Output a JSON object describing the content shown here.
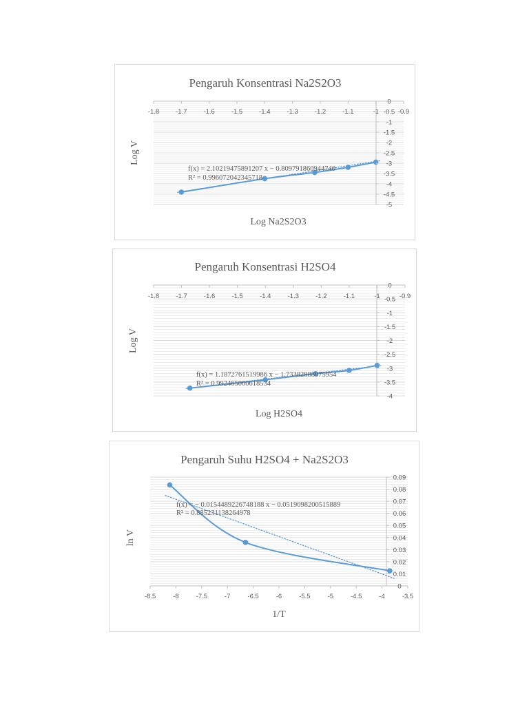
{
  "colors": {
    "series": "#5b9bd5",
    "grid": "#d9d9d9",
    "axis": "#bfbfbf",
    "text": "#595959"
  },
  "chart_data": [
    {
      "type": "scatter",
      "title": "Pengaruh Konsentrasi Na2S2O3",
      "xlabel": "Log Na2S2O3",
      "ylabel": "Log V",
      "xlim": [
        -1.8,
        -0.9
      ],
      "ylim": [
        -5,
        0
      ],
      "x_ticks": [
        "-1.8",
        "-1.7",
        "-1.6",
        "-1.5",
        "-1.4",
        "-1.3",
        "-1.2",
        "-1.1",
        "-1",
        "-0.9"
      ],
      "y_ticks": [
        "0",
        "-0.5",
        "-1",
        "-1.5",
        "-2",
        "-2.5",
        "-3",
        "-3.5",
        "-4",
        "-4.5",
        "-5"
      ],
      "x_axis_position": "top",
      "y_axis_position": "right",
      "grid": true,
      "series": [
        {
          "x": [
            -1.7,
            -1.4,
            -1.22,
            -1.1,
            -1.0
          ],
          "y": [
            -4.4,
            -3.75,
            -3.45,
            -3.2,
            -2.95
          ]
        }
      ],
      "connector": "smooth",
      "trendline": {
        "type": "linear",
        "slope": 2.10219475891207,
        "intercept": -0.80979186094474
      },
      "equation": "f(x) = 2.10219475891207 x − 0.809791860944740",
      "r_squared": "R² = 0.996072042345718"
    },
    {
      "type": "scatter",
      "title": "Pengaruh Konsentrasi H2SO4",
      "xlabel": "Log H2SO4",
      "ylabel": "Log V",
      "xlim": [
        -1.8,
        -0.9
      ],
      "ylim": [
        -4,
        0
      ],
      "x_ticks": [
        "-1.8",
        "-1.7",
        "-1.6",
        "-1.5",
        "-1.4",
        "-1.3",
        "-1.2",
        "-1.1",
        "-1",
        "-0.9"
      ],
      "y_ticks": [
        "0",
        "-0.5",
        "-1",
        "-1.5",
        "-2",
        "-2.5",
        "-3",
        "-3.5",
        "-4"
      ],
      "x_axis_position": "top",
      "y_axis_position": "right",
      "grid": true,
      "series": [
        {
          "x": [
            -1.67,
            -1.4,
            -1.22,
            -1.1,
            -1.0
          ],
          "y": [
            -3.72,
            -3.42,
            -3.2,
            -3.08,
            -2.9
          ]
        }
      ],
      "connector": "smooth",
      "trendline": {
        "type": "linear",
        "slope": 1.1872761519986,
        "intercept": -1.73382888075954
      },
      "equation": "f(x) = 1.1872761519986 x − 1.73382888075954",
      "r_squared": "R² = 0.992465000618534"
    },
    {
      "type": "scatter",
      "title": "Pengaruh Suhu H2SO4 + Na2S2O3",
      "xlabel": "1/T",
      "ylabel": "ln V",
      "xlim": [
        -8.5,
        -3.5
      ],
      "ylim": [
        0,
        0.09
      ],
      "x_ticks": [
        "-8.5",
        "-8",
        "-7.5",
        "-7",
        "-6.5",
        "-6",
        "-5.5",
        "-5",
        "-4.5",
        "-4",
        "-3.5"
      ],
      "y_ticks": [
        "0.09",
        "0.08",
        "0.07",
        "0.06",
        "0.05",
        "0.04",
        "0.03",
        "0.02",
        "0.01",
        "0"
      ],
      "x_axis_position": "bottom",
      "y_axis_position": "right",
      "grid": true,
      "series": [
        {
          "x": [
            -8.12,
            -6.65,
            -3.85
          ],
          "y": [
            0.0835,
            0.036,
            0.0125
          ]
        }
      ],
      "connector": "smooth",
      "trendline": {
        "type": "linear",
        "slope": -0.0154489226748188,
        "intercept": -0.0519098200515889
      },
      "equation": "f(x) = − 0.0154489226748188 x − 0.0519098200515889",
      "r_squared": "R² = 0.885231138264978"
    }
  ]
}
